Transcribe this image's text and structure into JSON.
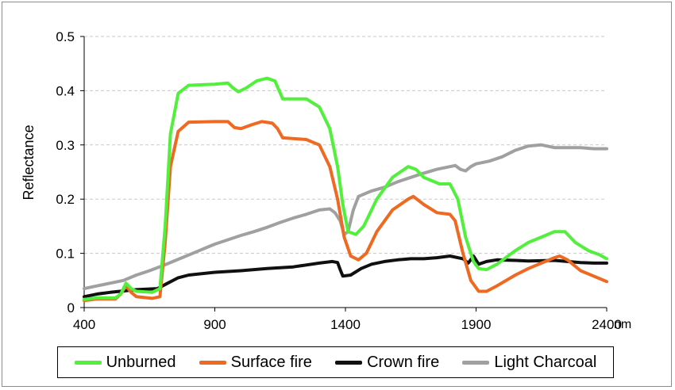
{
  "chart_data": {
    "type": "line",
    "title": "",
    "xlabel": "",
    "x_unit": "nm",
    "ylabel": "Reflectance",
    "xlim": [
      400,
      2400
    ],
    "ylim": [
      0,
      0.5
    ],
    "x_ticks": [
      "400",
      "900",
      "1400",
      "1900",
      "2400"
    ],
    "y_ticks": [
      "0",
      "0.1",
      "0.2",
      "0.3",
      "0.4",
      "0.5"
    ],
    "grid": "horizontal dashed",
    "legend_position": "bottom",
    "series": [
      {
        "name": "Unburned",
        "color": "#52ef3d",
        "points": [
          [
            400,
            0.015
          ],
          [
            450,
            0.018
          ],
          [
            520,
            0.018
          ],
          [
            540,
            0.025
          ],
          [
            560,
            0.045
          ],
          [
            580,
            0.035
          ],
          [
            600,
            0.03
          ],
          [
            660,
            0.028
          ],
          [
            690,
            0.035
          ],
          [
            710,
            0.15
          ],
          [
            730,
            0.32
          ],
          [
            760,
            0.395
          ],
          [
            800,
            0.41
          ],
          [
            900,
            0.412
          ],
          [
            950,
            0.414
          ],
          [
            970,
            0.405
          ],
          [
            990,
            0.398
          ],
          [
            1020,
            0.405
          ],
          [
            1060,
            0.418
          ],
          [
            1100,
            0.423
          ],
          [
            1130,
            0.418
          ],
          [
            1160,
            0.385
          ],
          [
            1250,
            0.385
          ],
          [
            1300,
            0.37
          ],
          [
            1340,
            0.33
          ],
          [
            1370,
            0.26
          ],
          [
            1390,
            0.19
          ],
          [
            1410,
            0.14
          ],
          [
            1440,
            0.135
          ],
          [
            1470,
            0.15
          ],
          [
            1520,
            0.2
          ],
          [
            1580,
            0.24
          ],
          [
            1640,
            0.26
          ],
          [
            1670,
            0.255
          ],
          [
            1700,
            0.24
          ],
          [
            1760,
            0.228
          ],
          [
            1800,
            0.228
          ],
          [
            1830,
            0.2
          ],
          [
            1860,
            0.13
          ],
          [
            1890,
            0.085
          ],
          [
            1910,
            0.072
          ],
          [
            1940,
            0.07
          ],
          [
            1980,
            0.08
          ],
          [
            2050,
            0.105
          ],
          [
            2100,
            0.12
          ],
          [
            2150,
            0.13
          ],
          [
            2200,
            0.14
          ],
          [
            2240,
            0.14
          ],
          [
            2280,
            0.12
          ],
          [
            2330,
            0.105
          ],
          [
            2370,
            0.098
          ],
          [
            2400,
            0.09
          ]
        ]
      },
      {
        "name": "Surface fire",
        "color": "#ee6a22",
        "points": [
          [
            400,
            0.013
          ],
          [
            450,
            0.016
          ],
          [
            520,
            0.016
          ],
          [
            540,
            0.025
          ],
          [
            560,
            0.04
          ],
          [
            580,
            0.028
          ],
          [
            600,
            0.02
          ],
          [
            660,
            0.017
          ],
          [
            690,
            0.02
          ],
          [
            710,
            0.12
          ],
          [
            730,
            0.26
          ],
          [
            760,
            0.325
          ],
          [
            800,
            0.342
          ],
          [
            900,
            0.343
          ],
          [
            950,
            0.343
          ],
          [
            975,
            0.332
          ],
          [
            1000,
            0.33
          ],
          [
            1040,
            0.337
          ],
          [
            1080,
            0.343
          ],
          [
            1120,
            0.34
          ],
          [
            1140,
            0.33
          ],
          [
            1160,
            0.313
          ],
          [
            1250,
            0.31
          ],
          [
            1300,
            0.3
          ],
          [
            1340,
            0.26
          ],
          [
            1370,
            0.2
          ],
          [
            1395,
            0.13
          ],
          [
            1420,
            0.095
          ],
          [
            1450,
            0.088
          ],
          [
            1480,
            0.1
          ],
          [
            1520,
            0.14
          ],
          [
            1580,
            0.18
          ],
          [
            1640,
            0.2
          ],
          [
            1660,
            0.205
          ],
          [
            1700,
            0.19
          ],
          [
            1750,
            0.175
          ],
          [
            1800,
            0.172
          ],
          [
            1820,
            0.16
          ],
          [
            1850,
            0.1
          ],
          [
            1880,
            0.05
          ],
          [
            1910,
            0.03
          ],
          [
            1940,
            0.03
          ],
          [
            1980,
            0.04
          ],
          [
            2050,
            0.06
          ],
          [
            2100,
            0.072
          ],
          [
            2150,
            0.082
          ],
          [
            2200,
            0.092
          ],
          [
            2220,
            0.095
          ],
          [
            2250,
            0.088
          ],
          [
            2300,
            0.068
          ],
          [
            2350,
            0.058
          ],
          [
            2400,
            0.048
          ]
        ]
      },
      {
        "name": "Crown fire",
        "color": "#101010",
        "points": [
          [
            400,
            0.02
          ],
          [
            450,
            0.025
          ],
          [
            500,
            0.028
          ],
          [
            600,
            0.033
          ],
          [
            680,
            0.035
          ],
          [
            720,
            0.045
          ],
          [
            760,
            0.055
          ],
          [
            800,
            0.06
          ],
          [
            900,
            0.065
          ],
          [
            1000,
            0.068
          ],
          [
            1100,
            0.072
          ],
          [
            1200,
            0.075
          ],
          [
            1300,
            0.082
          ],
          [
            1350,
            0.085
          ],
          [
            1370,
            0.083
          ],
          [
            1380,
            0.07
          ],
          [
            1390,
            0.058
          ],
          [
            1420,
            0.06
          ],
          [
            1460,
            0.072
          ],
          [
            1500,
            0.08
          ],
          [
            1550,
            0.085
          ],
          [
            1600,
            0.088
          ],
          [
            1650,
            0.09
          ],
          [
            1700,
            0.09
          ],
          [
            1750,
            0.092
          ],
          [
            1800,
            0.095
          ],
          [
            1850,
            0.09
          ],
          [
            1870,
            0.082
          ],
          [
            1890,
            0.095
          ],
          [
            1910,
            0.08
          ],
          [
            1940,
            0.085
          ],
          [
            1980,
            0.088
          ],
          [
            2050,
            0.087
          ],
          [
            2100,
            0.086
          ],
          [
            2200,
            0.087
          ],
          [
            2300,
            0.083
          ],
          [
            2350,
            0.082
          ],
          [
            2400,
            0.082
          ]
        ]
      },
      {
        "name": "Light Charcoal",
        "color": "#a0a0a0",
        "points": [
          [
            400,
            0.035
          ],
          [
            450,
            0.04
          ],
          [
            500,
            0.045
          ],
          [
            550,
            0.05
          ],
          [
            600,
            0.06
          ],
          [
            650,
            0.068
          ],
          [
            700,
            0.077
          ],
          [
            750,
            0.087
          ],
          [
            800,
            0.097
          ],
          [
            850,
            0.107
          ],
          [
            900,
            0.117
          ],
          [
            950,
            0.125
          ],
          [
            1000,
            0.133
          ],
          [
            1050,
            0.14
          ],
          [
            1100,
            0.148
          ],
          [
            1150,
            0.157
          ],
          [
            1200,
            0.165
          ],
          [
            1250,
            0.172
          ],
          [
            1300,
            0.18
          ],
          [
            1340,
            0.182
          ],
          [
            1360,
            0.175
          ],
          [
            1380,
            0.16
          ],
          [
            1395,
            0.135
          ],
          [
            1410,
            0.14
          ],
          [
            1430,
            0.18
          ],
          [
            1450,
            0.205
          ],
          [
            1500,
            0.215
          ],
          [
            1550,
            0.222
          ],
          [
            1600,
            0.232
          ],
          [
            1650,
            0.24
          ],
          [
            1700,
            0.248
          ],
          [
            1750,
            0.255
          ],
          [
            1800,
            0.26
          ],
          [
            1820,
            0.262
          ],
          [
            1840,
            0.255
          ],
          [
            1860,
            0.252
          ],
          [
            1880,
            0.26
          ],
          [
            1900,
            0.265
          ],
          [
            1950,
            0.27
          ],
          [
            2000,
            0.278
          ],
          [
            2050,
            0.29
          ],
          [
            2100,
            0.298
          ],
          [
            2150,
            0.3
          ],
          [
            2200,
            0.295
          ],
          [
            2250,
            0.295
          ],
          [
            2300,
            0.295
          ],
          [
            2350,
            0.293
          ],
          [
            2400,
            0.293
          ]
        ]
      }
    ]
  }
}
